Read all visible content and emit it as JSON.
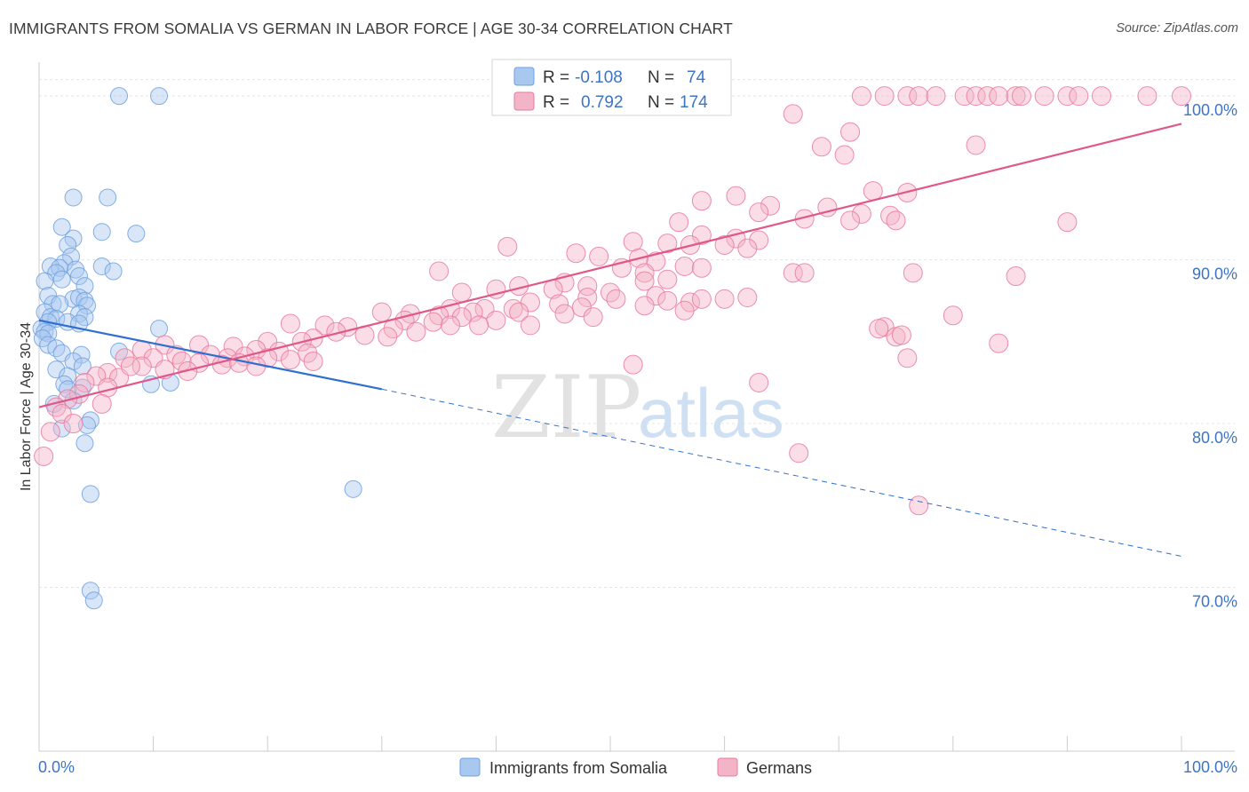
{
  "title": "IMMIGRANTS FROM SOMALIA VS GERMAN IN LABOR FORCE | AGE 30-34 CORRELATION CHART",
  "source": "Source: ZipAtlas.com",
  "watermark": {
    "zip": "ZIP",
    "atlas": "atlas"
  },
  "chart_data": {
    "type": "scatter",
    "title": "IMMIGRANTS FROM SOMALIA VS GERMAN IN LABOR FORCE | AGE 30-34 CORRELATION CHART",
    "xlabel": "",
    "ylabel": "In Labor Force | Age 30-34",
    "xlim": [
      0,
      100
    ],
    "ylim": [
      60,
      102.5
    ],
    "x_tick_labels": [
      "0.0%",
      "100.0%"
    ],
    "y_tick_labels": [
      "70.0%",
      "80.0%",
      "90.0%",
      "100.0%"
    ],
    "y_ticks": [
      70,
      80,
      90,
      100
    ],
    "grid": true,
    "legend_position": "top-center",
    "legend": [
      {
        "r_label": "R =",
        "r": "-0.108",
        "n_label": "N =",
        "n": "74",
        "color": "#a9c8ef"
      },
      {
        "r_label": "R =",
        "r": "0.792",
        "n_label": "N =",
        "n": "174",
        "color": "#f4b4c8"
      }
    ],
    "series": [
      {
        "name": "Immigrants from Somalia",
        "color": "#6fa1e0",
        "fill": "#a9c8ef",
        "trend": {
          "x0": 0,
          "y0": 86.3,
          "x1": 30,
          "y1": 82.1,
          "dash_to_x": 100,
          "dash_to_y": 71.9
        },
        "points": [
          [
            7,
            100
          ],
          [
            10.5,
            100
          ],
          [
            3,
            93.8
          ],
          [
            6,
            93.8
          ],
          [
            2,
            92
          ],
          [
            5.5,
            91.7
          ],
          [
            8.5,
            91.6
          ],
          [
            3,
            91.3
          ],
          [
            2.5,
            90.9
          ],
          [
            2.8,
            90.2
          ],
          [
            2.2,
            89.8
          ],
          [
            1,
            89.6
          ],
          [
            1.8,
            89.5
          ],
          [
            3.2,
            89.4
          ],
          [
            5.5,
            89.6
          ],
          [
            6.5,
            89.3
          ],
          [
            1.5,
            89.2
          ],
          [
            3.5,
            89
          ],
          [
            2,
            88.8
          ],
          [
            0.5,
            88.7
          ],
          [
            4,
            88.4
          ],
          [
            0.8,
            87.8
          ],
          [
            3,
            87.6
          ],
          [
            3.5,
            87.7
          ],
          [
            4,
            87.5
          ],
          [
            1.2,
            87.3
          ],
          [
            1.8,
            87.3
          ],
          [
            4.2,
            87.2
          ],
          [
            0.5,
            86.8
          ],
          [
            1,
            86.5
          ],
          [
            3.5,
            86.7
          ],
          [
            4,
            86.5
          ],
          [
            1.5,
            86.4
          ],
          [
            0.8,
            86.2
          ],
          [
            2.5,
            86.2
          ],
          [
            3.5,
            86.1
          ],
          [
            10.5,
            85.8
          ],
          [
            0.2,
            85.8
          ],
          [
            0.5,
            85.6
          ],
          [
            0.8,
            85.5
          ],
          [
            0.3,
            85.2
          ],
          [
            0.8,
            84.8
          ],
          [
            1.5,
            84.6
          ],
          [
            2,
            84.3
          ],
          [
            7,
            84.4
          ],
          [
            3.7,
            84.2
          ],
          [
            3,
            83.8
          ],
          [
            3.8,
            83.5
          ],
          [
            1.5,
            83.3
          ],
          [
            2.5,
            82.9
          ],
          [
            2.2,
            82.4
          ],
          [
            9.8,
            82.4
          ],
          [
            11.5,
            82.5
          ],
          [
            3.8,
            82.2
          ],
          [
            2.5,
            82.1
          ],
          [
            3,
            81.4
          ],
          [
            1.3,
            81.2
          ],
          [
            4.5,
            80.2
          ],
          [
            2,
            79.7
          ],
          [
            4.2,
            79.9
          ],
          [
            4,
            78.8
          ],
          [
            27.5,
            76
          ],
          [
            4.5,
            75.7
          ],
          [
            4.5,
            69.8
          ],
          [
            4.8,
            69.2
          ]
        ]
      },
      {
        "name": "Germans",
        "color": "#e97aa0",
        "fill": "#f4b4c8",
        "trend": {
          "x0": 0,
          "y0": 81,
          "x1": 100,
          "y1": 98.3
        },
        "points": [
          [
            72,
            100
          ],
          [
            74,
            100
          ],
          [
            76,
            100
          ],
          [
            77,
            100
          ],
          [
            78.5,
            100
          ],
          [
            81,
            100
          ],
          [
            82,
            100
          ],
          [
            83,
            100
          ],
          [
            84,
            100
          ],
          [
            85.5,
            100
          ],
          [
            86,
            100
          ],
          [
            88,
            100
          ],
          [
            90,
            100
          ],
          [
            91,
            100
          ],
          [
            93,
            100
          ],
          [
            97,
            100
          ],
          [
            100,
            100
          ],
          [
            66,
            98.9
          ],
          [
            71,
            97.8
          ],
          [
            68.5,
            96.9
          ],
          [
            70.5,
            96.4
          ],
          [
            82,
            97
          ],
          [
            73,
            94.2
          ],
          [
            76,
            94.1
          ],
          [
            61,
            93.9
          ],
          [
            58,
            93.6
          ],
          [
            64,
            93.3
          ],
          [
            69,
            93.2
          ],
          [
            63,
            92.9
          ],
          [
            72,
            92.8
          ],
          [
            74.5,
            92.7
          ],
          [
            67,
            92.5
          ],
          [
            71,
            92.4
          ],
          [
            75,
            92.4
          ],
          [
            90,
            92.3
          ],
          [
            56,
            92.3
          ],
          [
            58,
            91.5
          ],
          [
            61,
            91.3
          ],
          [
            63,
            91.2
          ],
          [
            52,
            91.1
          ],
          [
            55,
            91
          ],
          [
            57,
            90.9
          ],
          [
            60,
            90.9
          ],
          [
            62,
            90.7
          ],
          [
            41,
            90.8
          ],
          [
            47,
            90.4
          ],
          [
            49,
            90.2
          ],
          [
            52.5,
            90.1
          ],
          [
            54,
            89.9
          ],
          [
            56.5,
            89.6
          ],
          [
            51,
            89.5
          ],
          [
            58,
            89.5
          ],
          [
            53,
            89.2
          ],
          [
            66,
            89.2
          ],
          [
            35,
            89.3
          ],
          [
            55,
            88.8
          ],
          [
            53,
            88.7
          ],
          [
            46,
            88.6
          ],
          [
            48,
            88.4
          ],
          [
            40,
            88.2
          ],
          [
            42,
            88.4
          ],
          [
            45,
            88.2
          ],
          [
            50,
            88
          ],
          [
            37,
            88
          ],
          [
            54,
            87.8
          ],
          [
            48,
            87.7
          ],
          [
            50.5,
            87.6
          ],
          [
            55,
            87.5
          ],
          [
            57,
            87.4
          ],
          [
            43,
            87.4
          ],
          [
            45.5,
            87.3
          ],
          [
            36,
            87
          ],
          [
            39,
            87
          ],
          [
            41.5,
            87
          ],
          [
            47.5,
            87.1
          ],
          [
            53,
            87.2
          ],
          [
            56.5,
            86.9
          ],
          [
            60,
            87.6
          ],
          [
            46,
            86.7
          ],
          [
            48.5,
            86.5
          ],
          [
            38,
            86.8
          ],
          [
            42,
            86.8
          ],
          [
            30,
            86.8
          ],
          [
            32.5,
            86.7
          ],
          [
            35,
            86.6
          ],
          [
            37,
            86.5
          ],
          [
            40,
            86.3
          ],
          [
            43,
            86
          ],
          [
            32,
            86.3
          ],
          [
            34.5,
            86.2
          ],
          [
            36,
            86
          ],
          [
            38.5,
            86
          ],
          [
            22,
            86.1
          ],
          [
            25,
            86
          ],
          [
            27,
            85.9
          ],
          [
            31,
            85.8
          ],
          [
            33,
            85.6
          ],
          [
            26,
            85.6
          ],
          [
            28.5,
            85.4
          ],
          [
            30.5,
            85.3
          ],
          [
            24,
            85.2
          ],
          [
            20,
            85
          ],
          [
            23,
            85
          ],
          [
            11,
            84.8
          ],
          [
            14,
            84.8
          ],
          [
            17,
            84.7
          ],
          [
            19,
            84.5
          ],
          [
            21,
            84.4
          ],
          [
            23.5,
            84.3
          ],
          [
            9,
            84.5
          ],
          [
            12,
            84.2
          ],
          [
            15,
            84.2
          ],
          [
            16.5,
            84
          ],
          [
            18,
            84.1
          ],
          [
            20,
            84
          ],
          [
            22,
            83.9
          ],
          [
            24,
            83.8
          ],
          [
            10,
            84
          ],
          [
            12.5,
            83.8
          ],
          [
            14,
            83.7
          ],
          [
            16,
            83.6
          ],
          [
            17.5,
            83.7
          ],
          [
            19,
            83.5
          ],
          [
            7.5,
            84
          ],
          [
            9,
            83.5
          ],
          [
            11,
            83.3
          ],
          [
            13,
            83.2
          ],
          [
            6,
            83.1
          ],
          [
            7,
            82.8
          ],
          [
            8,
            83.5
          ],
          [
            5,
            82.9
          ],
          [
            4,
            82.5
          ],
          [
            6,
            82.2
          ],
          [
            3.5,
            81.8
          ],
          [
            2.5,
            81.5
          ],
          [
            5.5,
            81.2
          ],
          [
            1.5,
            81
          ],
          [
            2,
            80.6
          ],
          [
            3,
            80
          ],
          [
            1,
            79.5
          ],
          [
            67,
            89.2
          ],
          [
            76.5,
            89.2
          ],
          [
            85.5,
            89
          ],
          [
            62,
            87.7
          ],
          [
            58,
            87.6
          ],
          [
            80,
            86.6
          ],
          [
            74,
            85.9
          ],
          [
            75,
            85.3
          ],
          [
            75.5,
            85.4
          ],
          [
            73.5,
            85.8
          ],
          [
            84,
            84.9
          ],
          [
            76,
            84
          ],
          [
            52,
            83.6
          ],
          [
            63,
            82.5
          ],
          [
            66.5,
            78.2
          ],
          [
            77,
            75
          ],
          [
            0.4,
            78
          ]
        ]
      }
    ]
  },
  "bottom_legend": [
    {
      "label": "Immigrants from Somalia",
      "color": "#a9c8ef"
    },
    {
      "label": "Germans",
      "color": "#f4b4c8"
    }
  ]
}
